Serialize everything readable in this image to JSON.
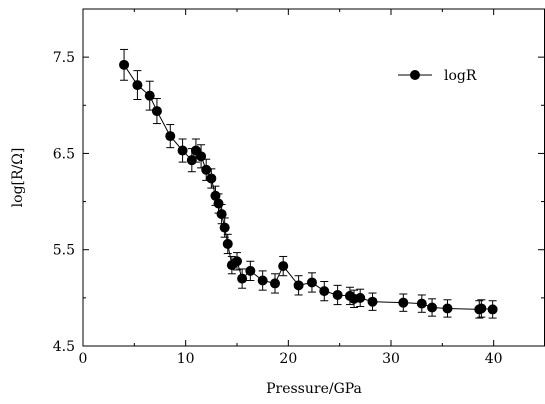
{
  "chart_data": {
    "type": "line",
    "title": "",
    "xlabel": "Pressure/GPa",
    "ylabel": "log[R/Ω]",
    "xlim": [
      0,
      45
    ],
    "ylim": [
      4.5,
      8.0
    ],
    "x_ticks": [
      "0",
      "10",
      "20",
      "30",
      "40"
    ],
    "y_ticks": [
      "4.5",
      "5.5",
      "6.5",
      "7.5"
    ],
    "grid": false,
    "legend_position": "top-right",
    "series": [
      {
        "name": "logR",
        "color": "#000000",
        "marker": "filled-circle",
        "x": [
          4.0,
          5.3,
          6.5,
          7.2,
          8.5,
          9.7,
          10.6,
          11.0,
          11.5,
          12.0,
          12.5,
          12.9,
          13.2,
          13.5,
          13.8,
          14.1,
          14.5,
          15.0,
          15.5,
          16.3,
          17.5,
          18.7,
          19.5,
          21.0,
          22.3,
          23.5,
          24.8,
          26.0,
          26.4,
          27.0,
          28.2,
          31.2,
          33.0,
          34.0,
          35.5,
          38.6,
          38.8,
          39.9
        ],
        "y": [
          7.42,
          7.21,
          7.1,
          6.94,
          6.68,
          6.53,
          6.43,
          6.53,
          6.47,
          6.33,
          6.24,
          6.06,
          5.98,
          5.87,
          5.73,
          5.56,
          5.34,
          5.38,
          5.2,
          5.28,
          5.18,
          5.15,
          5.33,
          5.13,
          5.16,
          5.07,
          5.03,
          5.02,
          4.99,
          5.0,
          4.96,
          4.95,
          4.94,
          4.9,
          4.89,
          4.88,
          4.89,
          4.88
        ],
        "error": [
          0.16,
          0.15,
          0.15,
          0.13,
          0.12,
          0.12,
          0.12,
          0.12,
          0.12,
          0.11,
          0.1,
          0.1,
          0.1,
          0.1,
          0.1,
          0.1,
          0.09,
          0.09,
          0.1,
          0.1,
          0.1,
          0.1,
          0.1,
          0.1,
          0.1,
          0.1,
          0.1,
          0.09,
          0.09,
          0.09,
          0.09,
          0.09,
          0.09,
          0.09,
          0.09,
          0.09,
          0.09,
          0.09
        ]
      }
    ]
  }
}
